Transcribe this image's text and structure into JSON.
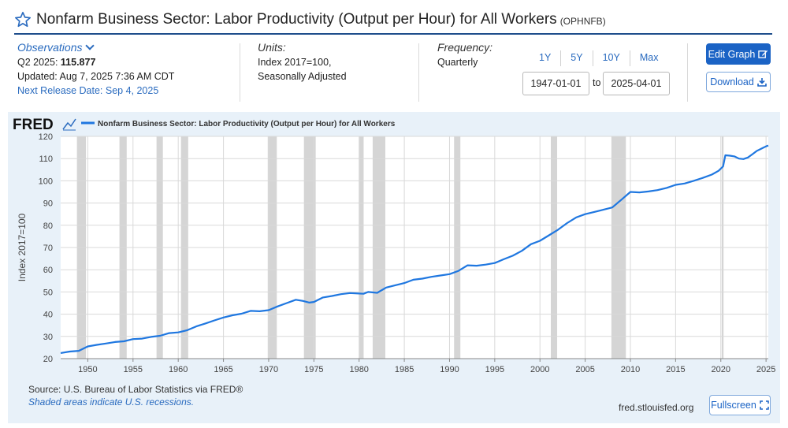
{
  "header": {
    "title": "Nonfarm Business Sector: Labor Productivity (Output per Hour) for All Workers",
    "series_id": "(OPHNFB)"
  },
  "observations": {
    "label": "Observations",
    "latest_prefix": "Q2 2025:",
    "latest_value": "115.877",
    "updated": "Updated: Aug 7, 2025 7:36 AM CDT",
    "next_release": "Next Release Date: Sep 4, 2025"
  },
  "units": {
    "label": "Units:",
    "line1": "Index 2017=100,",
    "line2": "Seasonally Adjusted"
  },
  "frequency": {
    "label": "Frequency:",
    "value": "Quarterly"
  },
  "range_buttons": [
    "1Y",
    "5Y",
    "10Y",
    "Max"
  ],
  "date_range": {
    "start": "1947-01-01",
    "to": "to",
    "end": "2025-04-01"
  },
  "buttons": {
    "edit": "Edit Graph",
    "download": "Download",
    "fullscreen": "Fullscreen"
  },
  "footer": {
    "source": "Source: U.S. Bureau of Labor Statistics via FRED®",
    "shaded": "Shaded areas indicate U.S. recessions.",
    "site": "fred.stlouisfed.org"
  },
  "colors": {
    "accent": "#1b63c5",
    "line": "#1f77e0",
    "panel": "#e8f1f9",
    "recession": "#d5d5d5"
  },
  "chart_data": {
    "type": "line",
    "brand": "FRED",
    "legend": "Nonfarm Business Sector: Labor Productivity (Output per Hour) for All Workers",
    "ylabel": "Index 2017=100",
    "xlim": [
      1947.0,
      2025.25
    ],
    "ylim": [
      20,
      120
    ],
    "yticks": [
      20,
      30,
      40,
      50,
      60,
      70,
      80,
      90,
      100,
      110,
      120
    ],
    "xticks": [
      1950,
      1955,
      1960,
      1965,
      1970,
      1975,
      1980,
      1985,
      1990,
      1995,
      2000,
      2005,
      2010,
      2015,
      2020,
      2025
    ],
    "grid": true,
    "recessions": [
      [
        1948.8,
        1949.8
      ],
      [
        1953.5,
        1954.3
      ],
      [
        1957.6,
        1958.3
      ],
      [
        1960.3,
        1961.1
      ],
      [
        1969.9,
        1970.9
      ],
      [
        1973.9,
        1975.2
      ],
      [
        1980.0,
        1980.5
      ],
      [
        1981.5,
        1982.9
      ],
      [
        1990.5,
        1991.2
      ],
      [
        2001.2,
        2001.9
      ],
      [
        2007.9,
        2009.5
      ],
      [
        2020.1,
        2020.3
      ]
    ],
    "series": [
      {
        "name": "Nonfarm Business Sector: Labor Productivity (Output per Hour) for All Workers",
        "x": [
          1947.0,
          1948.0,
          1949.0,
          1950.0,
          1951.0,
          1952.0,
          1953.0,
          1954.0,
          1955.0,
          1956.0,
          1957.0,
          1958.0,
          1959.0,
          1960.0,
          1961.0,
          1962.0,
          1963.0,
          1964.0,
          1965.0,
          1966.0,
          1967.0,
          1968.0,
          1969.0,
          1970.0,
          1971.0,
          1972.0,
          1973.0,
          1973.75,
          1974.5,
          1975.0,
          1976.0,
          1977.0,
          1978.0,
          1979.0,
          1980.0,
          1980.5,
          1981.0,
          1982.0,
          1983.0,
          1984.0,
          1985.0,
          1986.0,
          1987.0,
          1988.0,
          1989.0,
          1990.0,
          1991.0,
          1992.0,
          1993.0,
          1994.0,
          1995.0,
          1996.0,
          1997.0,
          1998.0,
          1999.0,
          2000.0,
          2001.0,
          2002.0,
          2003.0,
          2004.0,
          2005.0,
          2006.0,
          2007.0,
          2008.0,
          2009.0,
          2010.0,
          2011.0,
          2012.0,
          2013.0,
          2014.0,
          2015.0,
          2016.0,
          2017.0,
          2018.0,
          2019.0,
          2019.75,
          2020.25,
          2020.5,
          2021.0,
          2021.5,
          2022.0,
          2022.5,
          2023.0,
          2023.5,
          2024.0,
          2024.5,
          2025.0,
          2025.25
        ],
        "values": [
          22.5,
          23.2,
          23.5,
          25.5,
          26.2,
          26.8,
          27.5,
          27.8,
          28.8,
          29.0,
          29.8,
          30.3,
          31.5,
          31.8,
          32.8,
          34.5,
          35.8,
          37.2,
          38.5,
          39.5,
          40.2,
          41.5,
          41.3,
          41.8,
          43.5,
          45.0,
          46.5,
          46.0,
          45.2,
          45.5,
          47.5,
          48.2,
          49.0,
          49.5,
          49.3,
          49.2,
          50.0,
          49.6,
          52.0,
          53.0,
          54.0,
          55.5,
          56.0,
          56.8,
          57.4,
          58.0,
          59.5,
          62.0,
          61.8,
          62.3,
          63.0,
          64.7,
          66.3,
          68.5,
          71.5,
          73.0,
          75.5,
          78.0,
          81.0,
          83.5,
          85.0,
          86.0,
          87.0,
          88.0,
          91.5,
          95.0,
          94.8,
          95.2,
          95.8,
          96.8,
          98.2,
          98.8,
          100.0,
          101.3,
          102.8,
          104.5,
          106.5,
          111.5,
          111.3,
          111.0,
          110.0,
          109.8,
          110.5,
          112.0,
          113.5,
          114.5,
          115.5,
          115.877
        ]
      }
    ]
  }
}
